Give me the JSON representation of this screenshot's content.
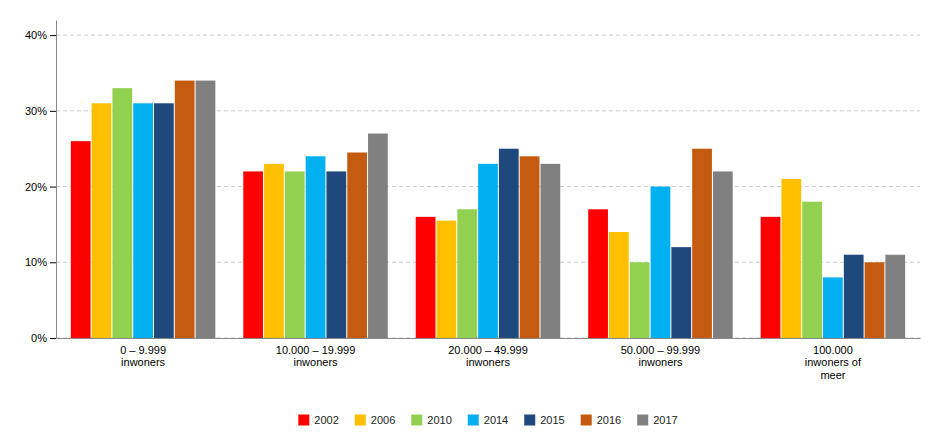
{
  "chart_data": {
    "type": "bar",
    "categories": [
      "0 – 9.999\ninwoners",
      "10.000 – 19.999\ninwoners",
      "20.000 – 49.999\ninwoners",
      "50.000 – 99.999\ninwoners",
      "100.000\ninwoners of\nmeer"
    ],
    "series": [
      {
        "name": "2002",
        "color": "#FF0000",
        "values": [
          0.26,
          0.22,
          0.16,
          0.17,
          0.16
        ]
      },
      {
        "name": "2006",
        "color": "#FFC000",
        "values": [
          0.31,
          0.23,
          0.155,
          0.14,
          0.21
        ]
      },
      {
        "name": "2010",
        "color": "#92D050",
        "values": [
          0.33,
          0.22,
          0.17,
          0.1,
          0.18
        ]
      },
      {
        "name": "2014",
        "color": "#00B0F0",
        "values": [
          0.31,
          0.24,
          0.23,
          0.2,
          0.08
        ]
      },
      {
        "name": "2015",
        "color": "#1F497D",
        "values": [
          0.31,
          0.22,
          0.25,
          0.12,
          0.11
        ]
      },
      {
        "name": "2016",
        "color": "#C55A11",
        "values": [
          0.34,
          0.245,
          0.24,
          0.25,
          0.1
        ]
      },
      {
        "name": "2017",
        "color": "#808080",
        "values": [
          0.34,
          0.27,
          0.23,
          0.22,
          0.11
        ]
      }
    ],
    "ylim": [
      0,
      0.42
    ],
    "yticks": [
      {
        "value": 0.0,
        "label": "0%"
      },
      {
        "value": 0.1,
        "label": "10%"
      },
      {
        "value": 0.2,
        "label": "20%"
      },
      {
        "value": 0.3,
        "label": "30%"
      },
      {
        "value": 0.4,
        "label": "40%"
      }
    ],
    "grid": true,
    "legend": "bottom"
  }
}
